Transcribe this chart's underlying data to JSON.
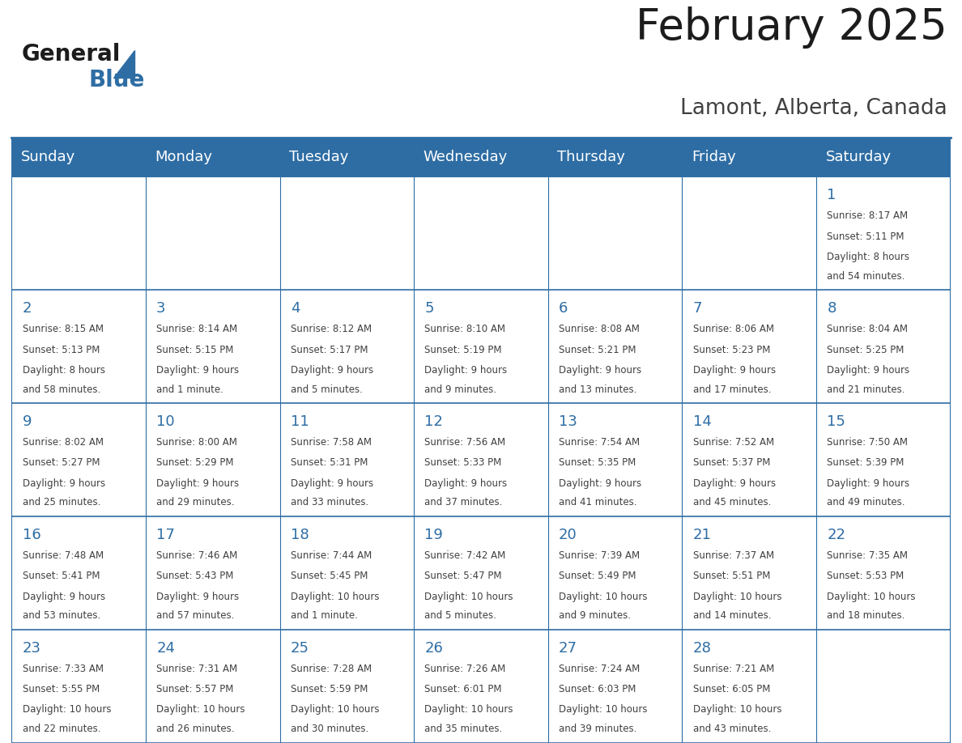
{
  "title": "February 2025",
  "subtitle": "Lamont, Alberta, Canada",
  "days_of_week": [
    "Sunday",
    "Monday",
    "Tuesday",
    "Wednesday",
    "Thursday",
    "Friday",
    "Saturday"
  ],
  "header_bg": "#2E6DA4",
  "header_text": "#FFFFFF",
  "cell_bg": "#FFFFFF",
  "border_color": "#2E6DA4",
  "day_num_color": "#2E6DA4",
  "text_color": "#404040",
  "calendar_data": [
    [
      null,
      null,
      null,
      null,
      null,
      null,
      {
        "day": 1,
        "sunrise": "8:17 AM",
        "sunset": "5:11 PM",
        "daylight": "8 hours and 54 minutes."
      }
    ],
    [
      {
        "day": 2,
        "sunrise": "8:15 AM",
        "sunset": "5:13 PM",
        "daylight": "8 hours and 58 minutes."
      },
      {
        "day": 3,
        "sunrise": "8:14 AM",
        "sunset": "5:15 PM",
        "daylight": "9 hours and 1 minute."
      },
      {
        "day": 4,
        "sunrise": "8:12 AM",
        "sunset": "5:17 PM",
        "daylight": "9 hours and 5 minutes."
      },
      {
        "day": 5,
        "sunrise": "8:10 AM",
        "sunset": "5:19 PM",
        "daylight": "9 hours and 9 minutes."
      },
      {
        "day": 6,
        "sunrise": "8:08 AM",
        "sunset": "5:21 PM",
        "daylight": "9 hours and 13 minutes."
      },
      {
        "day": 7,
        "sunrise": "8:06 AM",
        "sunset": "5:23 PM",
        "daylight": "9 hours and 17 minutes."
      },
      {
        "day": 8,
        "sunrise": "8:04 AM",
        "sunset": "5:25 PM",
        "daylight": "9 hours and 21 minutes."
      }
    ],
    [
      {
        "day": 9,
        "sunrise": "8:02 AM",
        "sunset": "5:27 PM",
        "daylight": "9 hours and 25 minutes."
      },
      {
        "day": 10,
        "sunrise": "8:00 AM",
        "sunset": "5:29 PM",
        "daylight": "9 hours and 29 minutes."
      },
      {
        "day": 11,
        "sunrise": "7:58 AM",
        "sunset": "5:31 PM",
        "daylight": "9 hours and 33 minutes."
      },
      {
        "day": 12,
        "sunrise": "7:56 AM",
        "sunset": "5:33 PM",
        "daylight": "9 hours and 37 minutes."
      },
      {
        "day": 13,
        "sunrise": "7:54 AM",
        "sunset": "5:35 PM",
        "daylight": "9 hours and 41 minutes."
      },
      {
        "day": 14,
        "sunrise": "7:52 AM",
        "sunset": "5:37 PM",
        "daylight": "9 hours and 45 minutes."
      },
      {
        "day": 15,
        "sunrise": "7:50 AM",
        "sunset": "5:39 PM",
        "daylight": "9 hours and 49 minutes."
      }
    ],
    [
      {
        "day": 16,
        "sunrise": "7:48 AM",
        "sunset": "5:41 PM",
        "daylight": "9 hours and 53 minutes."
      },
      {
        "day": 17,
        "sunrise": "7:46 AM",
        "sunset": "5:43 PM",
        "daylight": "9 hours and 57 minutes."
      },
      {
        "day": 18,
        "sunrise": "7:44 AM",
        "sunset": "5:45 PM",
        "daylight": "10 hours and 1 minute."
      },
      {
        "day": 19,
        "sunrise": "7:42 AM",
        "sunset": "5:47 PM",
        "daylight": "10 hours and 5 minutes."
      },
      {
        "day": 20,
        "sunrise": "7:39 AM",
        "sunset": "5:49 PM",
        "daylight": "10 hours and 9 minutes."
      },
      {
        "day": 21,
        "sunrise": "7:37 AM",
        "sunset": "5:51 PM",
        "daylight": "10 hours and 14 minutes."
      },
      {
        "day": 22,
        "sunrise": "7:35 AM",
        "sunset": "5:53 PM",
        "daylight": "10 hours and 18 minutes."
      }
    ],
    [
      {
        "day": 23,
        "sunrise": "7:33 AM",
        "sunset": "5:55 PM",
        "daylight": "10 hours and 22 minutes."
      },
      {
        "day": 24,
        "sunrise": "7:31 AM",
        "sunset": "5:57 PM",
        "daylight": "10 hours and 26 minutes."
      },
      {
        "day": 25,
        "sunrise": "7:28 AM",
        "sunset": "5:59 PM",
        "daylight": "10 hours and 30 minutes."
      },
      {
        "day": 26,
        "sunrise": "7:26 AM",
        "sunset": "6:01 PM",
        "daylight": "10 hours and 35 minutes."
      },
      {
        "day": 27,
        "sunrise": "7:24 AM",
        "sunset": "6:03 PM",
        "daylight": "10 hours and 39 minutes."
      },
      {
        "day": 28,
        "sunrise": "7:21 AM",
        "sunset": "6:05 PM",
        "daylight": "10 hours and 43 minutes."
      },
      null
    ]
  ],
  "title_fontsize": 38,
  "subtitle_fontsize": 19,
  "header_fontsize": 13,
  "day_num_fontsize": 13,
  "cell_text_fontsize": 8.5,
  "logo_general_fontsize": 20,
  "logo_blue_fontsize": 20
}
